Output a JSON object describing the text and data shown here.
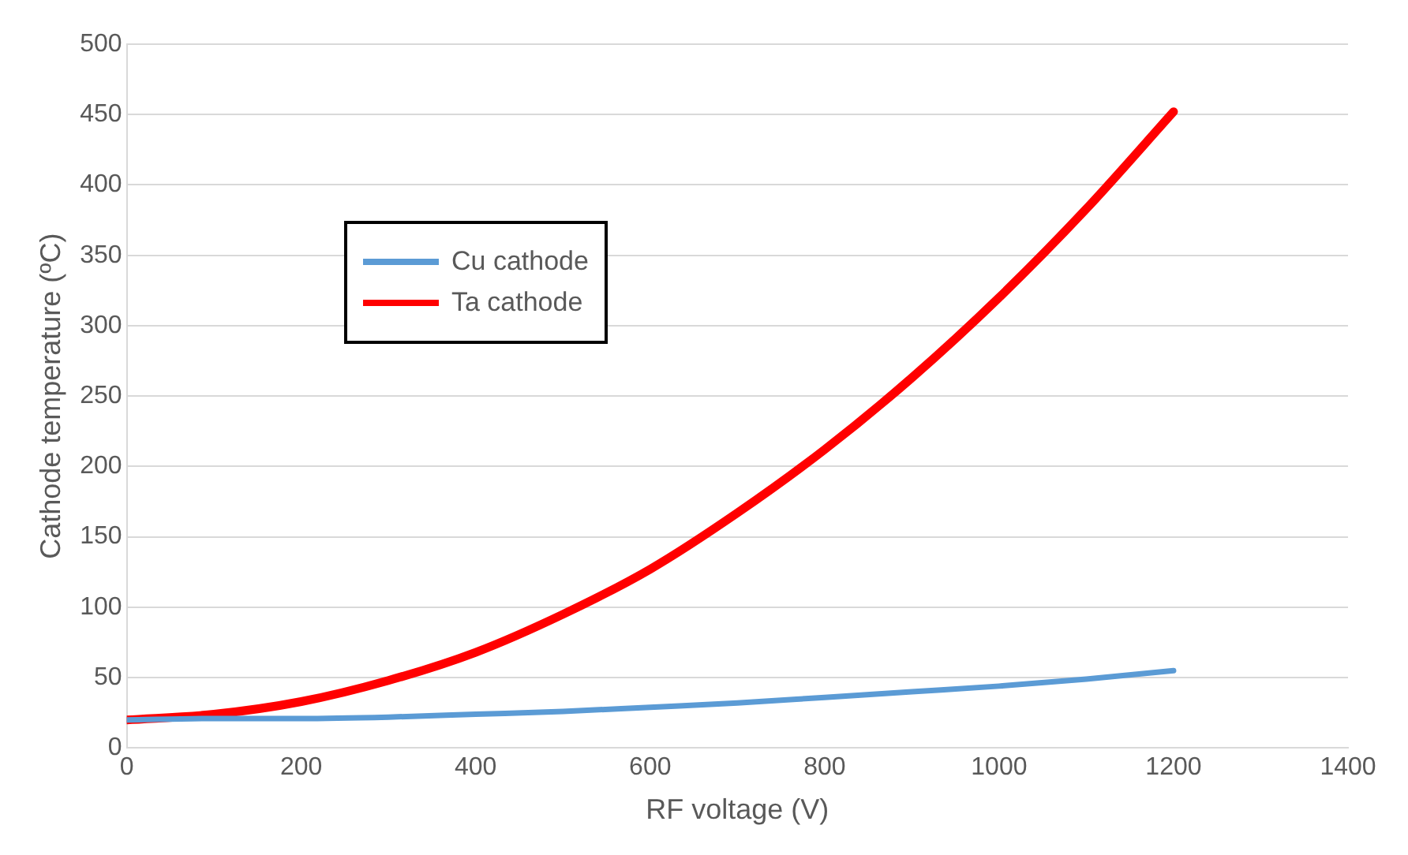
{
  "chart_data": {
    "type": "line",
    "xlabel": "RF voltage (V)",
    "ylabel": "Cathode temperature (ºC)",
    "xlim": [
      0,
      1400
    ],
    "xticks": [
      0,
      200,
      400,
      600,
      800,
      1000,
      1200,
      1400
    ],
    "ylim": [
      0,
      500
    ],
    "yticks": [
      0,
      50,
      100,
      150,
      200,
      250,
      300,
      350,
      400,
      450,
      500
    ],
    "grid": "y",
    "legend": "top left",
    "marker": "none",
    "line_style": "solid",
    "series": [
      {
        "name": "Cu cathode",
        "color": "#5b9bd5",
        "x": [
          0,
          100,
          200,
          300,
          400,
          500,
          600,
          700,
          800,
          900,
          1000,
          1100,
          1200
        ],
        "values": [
          20,
          21,
          21,
          22,
          24,
          26,
          29,
          32,
          36,
          40,
          44,
          49,
          55
        ]
      },
      {
        "name": "Ta cathode",
        "color": "#ff0000",
        "x": [
          0,
          100,
          200,
          300,
          400,
          500,
          600,
          700,
          800,
          900,
          1000,
          1100,
          1200
        ],
        "values": [
          20,
          24,
          33,
          48,
          68,
          95,
          127,
          167,
          212,
          263,
          320,
          383,
          452
        ]
      }
    ]
  }
}
